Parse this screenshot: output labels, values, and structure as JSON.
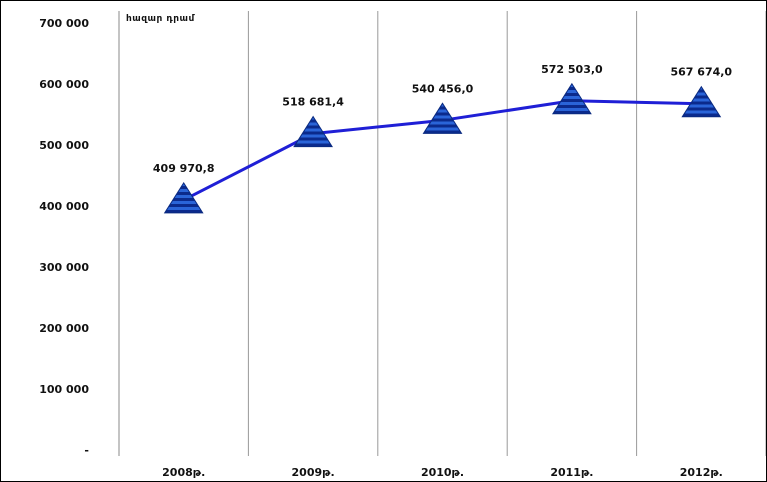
{
  "chart_data": {
    "type": "line",
    "title": "",
    "unit_label": "հազար դրամ",
    "xlabel": "",
    "ylabel": "",
    "categories": [
      "2008թ.",
      "2009թ.",
      "2010թ.",
      "2011թ.",
      "2012թ."
    ],
    "series": [
      {
        "values": [
          409970.8,
          518681.4,
          540456.0,
          572503.0,
          567674.0
        ],
        "value_labels": [
          "409 970,8",
          "518 681,4",
          "540 456,0",
          "572 503,0",
          "567 674,0"
        ],
        "color": "#1f1fd6",
        "marker": "triangle",
        "marker_color": "#1a47b8"
      }
    ],
    "ylim": [
      0,
      700000
    ],
    "yticks": [
      0,
      100000,
      200000,
      300000,
      400000,
      500000,
      600000,
      700000
    ],
    "ytick_labels": [
      "-",
      "100 000",
      "200 000",
      "300 000",
      "400 000",
      "500 000",
      "600 000",
      "700 000"
    ],
    "grid": "vertical",
    "legend": "none",
    "colors": {
      "line": "#1f1fd6",
      "marker": "#1a47b8",
      "gridline": "#999999",
      "axis": "#888888"
    }
  }
}
